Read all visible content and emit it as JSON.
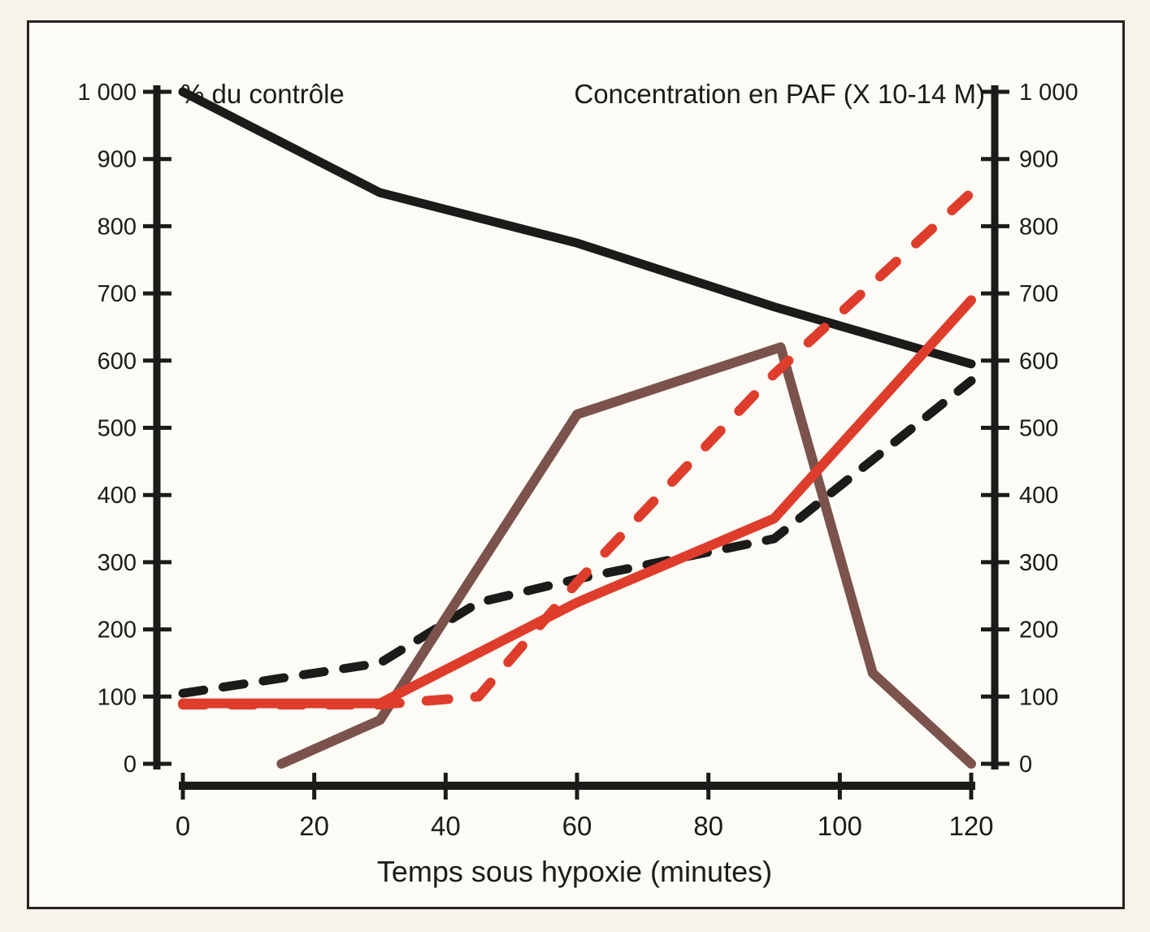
{
  "figure": {
    "frame_color": "#26241f",
    "page_background": "#f5f3ea",
    "plot_background": "#fcfbf6",
    "text_color": "#1d1b19"
  },
  "chart_data": {
    "type": "line",
    "title": "",
    "x_axis": {
      "label": "Temps sous hypoxie (minutes)",
      "range": [
        0,
        120
      ],
      "ticks": [
        0,
        20,
        40,
        60,
        80,
        100,
        120
      ],
      "tick_labels": [
        "0",
        "20",
        "40",
        "60",
        "80",
        "100",
        "120"
      ]
    },
    "y_axis_left": {
      "label": "% du contrôle",
      "range": [
        0,
        1000
      ],
      "ticks": [
        0,
        100,
        200,
        300,
        400,
        500,
        600,
        700,
        800,
        900,
        1000
      ],
      "tick_labels": [
        "0",
        "100",
        "200",
        "300",
        "400",
        "500",
        "600",
        "700",
        "800",
        "900",
        "1 000"
      ]
    },
    "y_axis_right": {
      "label": "Concentration en PAF (X 10-14 M)",
      "range": [
        0,
        1000
      ],
      "ticks": [
        0,
        100,
        200,
        300,
        400,
        500,
        600,
        700,
        800,
        900,
        1000
      ],
      "tick_labels": [
        "0",
        "100",
        "200",
        "300",
        "400",
        "500",
        "600",
        "700",
        "800",
        "900",
        "1 000"
      ]
    },
    "grid": false,
    "legend": "none",
    "series": [
      {
        "name": "black-dashed",
        "color": "#1d1b19",
        "style": "dashed",
        "points": [
          [
            0,
            105
          ],
          [
            30,
            150
          ],
          [
            45,
            240
          ],
          [
            60,
            275
          ],
          [
            90,
            335
          ],
          [
            120,
            570
          ]
        ]
      },
      {
        "name": "brown-solid",
        "color": "#7b534c",
        "style": "solid",
        "points": [
          [
            15,
            0
          ],
          [
            30,
            65
          ],
          [
            60,
            520
          ],
          [
            91,
            620
          ],
          [
            105,
            135
          ],
          [
            120,
            0
          ]
        ]
      },
      {
        "name": "black-solid",
        "color": "#1d1b19",
        "style": "solid",
        "points": [
          [
            0,
            1000
          ],
          [
            30,
            850
          ],
          [
            60,
            775
          ],
          [
            90,
            680
          ],
          [
            120,
            595
          ]
        ]
      },
      {
        "name": "red-solid",
        "color": "#df3d2c",
        "style": "solid",
        "points": [
          [
            0,
            90
          ],
          [
            30,
            90
          ],
          [
            60,
            240
          ],
          [
            90,
            365
          ],
          [
            120,
            690
          ]
        ]
      },
      {
        "name": "red-dashed",
        "color": "#df3d2c",
        "style": "dashed",
        "points": [
          [
            0,
            88
          ],
          [
            30,
            88
          ],
          [
            45,
            100
          ],
          [
            60,
            270
          ],
          [
            90,
            580
          ],
          [
            120,
            850
          ]
        ]
      }
    ]
  }
}
